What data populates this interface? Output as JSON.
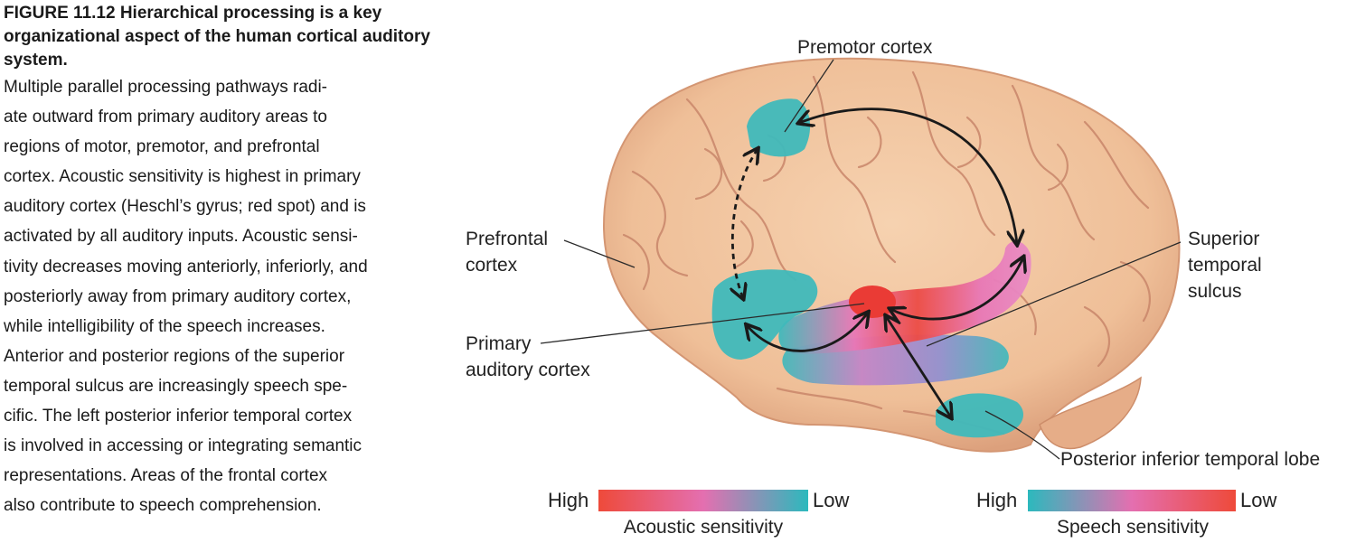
{
  "caption": {
    "title_lines": [
      "FIGURE 11.12  Hierarchical processing is",
      "a key organizational aspect of the human",
      "cortical auditory system."
    ],
    "body_lines": [
      "Multiple parallel processing pathways radi-",
      "ate outward from primary auditory areas to",
      "regions of motor, premotor, and prefrontal",
      "cortex. Acoustic sensitivity is highest in primary",
      "auditory cortex (Heschl’s gyrus; red spot) and is",
      "activated by all auditory inputs. Acoustic sensi-",
      "tivity decreases moving anteriorly, inferiorly, and",
      "posteriorly away from primary auditory cortex,",
      "while intelligibility of the speech increases.",
      "Anterior and posterior regions of the superior",
      "temporal sulcus are increasingly speech spe-",
      "cific. The left posterior inferior temporal cortex",
      "is involved in accessing or integrating semantic",
      "representations. Areas of the frontal cortex",
      "also contribute to speech comprehension."
    ]
  },
  "figure": {
    "labels": {
      "premotor": [
        "Premotor cortex"
      ],
      "prefrontal": [
        "Prefrontal",
        "cortex"
      ],
      "superior_temporal": [
        "Superior",
        "temporal",
        "sulcus"
      ],
      "primary_auditory": [
        "Primary",
        "auditory cortex"
      ],
      "posterior_inferior": [
        "Posterior inferior temporal lobe"
      ]
    },
    "scales": [
      {
        "title": "Acoustic sensitivity",
        "left": "High",
        "right": "Low",
        "colors": [
          "#ee4a3a",
          "#e46fb0",
          "#2cb9bd"
        ]
      },
      {
        "title": "Speech sensitivity",
        "left": "High",
        "right": "Low",
        "colors": [
          "#2cb9bd",
          "#e46fb0",
          "#ee4a3a"
        ]
      }
    ],
    "colors": {
      "brain": "#f2c6a0",
      "brain_shadow": "#dea07a",
      "sulci": "#c9866a",
      "speech_region": "#3fb9bb",
      "acoustic_peak": "#ea3b35",
      "arrow": "#1a1a1a"
    }
  }
}
